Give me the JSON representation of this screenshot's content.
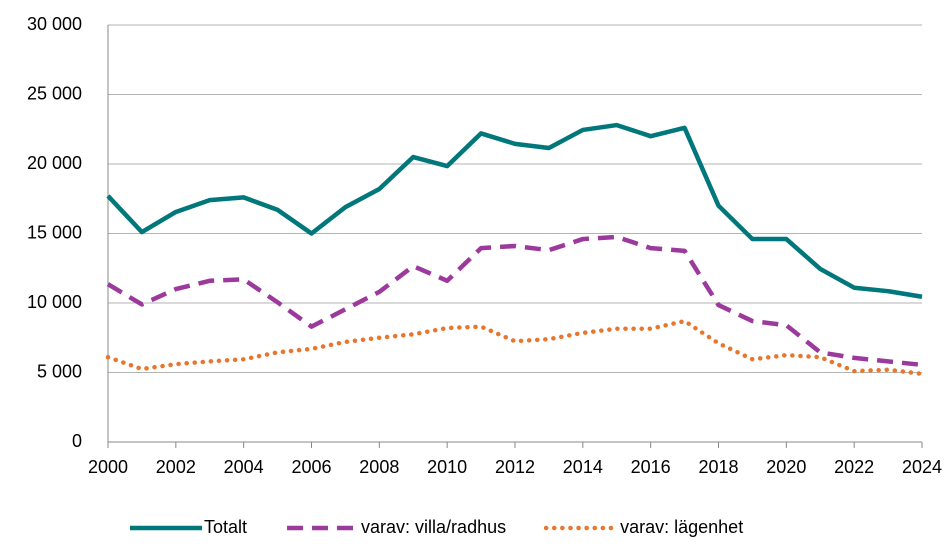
{
  "chart_data": {
    "type": "line",
    "x": [
      2000,
      2001,
      2002,
      2003,
      2004,
      2005,
      2006,
      2007,
      2008,
      2009,
      2010,
      2011,
      2012,
      2013,
      2014,
      2015,
      2016,
      2017,
      2018,
      2019,
      2020,
      2021,
      2022,
      2023,
      2024
    ],
    "xlim": [
      2000,
      2024
    ],
    "xticks": [
      2000,
      2002,
      2004,
      2006,
      2008,
      2010,
      2012,
      2014,
      2016,
      2018,
      2020,
      2022,
      2024
    ],
    "ylim": [
      0,
      30000
    ],
    "yticks": [
      0,
      {
        "value": 5000,
        "label": "5 000"
      },
      {
        "value": 10000,
        "label": "10 000"
      },
      {
        "value": 15000,
        "label": "15 000"
      },
      {
        "value": 20000,
        "label": "20 000"
      },
      {
        "value": 25000,
        "label": "25 000"
      },
      {
        "value": 30000,
        "label": "30 000"
      }
    ],
    "grid": true,
    "legend": "bottom",
    "series": [
      {
        "name": "Totalt",
        "color": "#00777a",
        "dash": "solid",
        "values": [
          17700,
          15100,
          16550,
          17400,
          17600,
          16700,
          15000,
          16900,
          18200,
          20500,
          19850,
          22200,
          21450,
          21150,
          22450,
          22800,
          22000,
          22600,
          17000,
          14600,
          14600,
          12450,
          11100,
          10850,
          10450
        ]
      },
      {
        "name": "varav: villa/radhus",
        "color": "#9b3a9c",
        "dash": "dashed",
        "values": [
          11350,
          9900,
          11000,
          11600,
          11700,
          10050,
          8300,
          9550,
          10800,
          12650,
          11600,
          13950,
          14100,
          13800,
          14600,
          14750,
          13950,
          13750,
          9850,
          8700,
          8400,
          6450,
          6050,
          5800,
          5550
        ]
      },
      {
        "name": "varav: lägenhet",
        "color": "#e8762d",
        "dash": "dotted",
        "values": [
          6100,
          5250,
          5600,
          5800,
          5950,
          6450,
          6700,
          7200,
          7500,
          7750,
          8200,
          8300,
          7250,
          7400,
          7850,
          8150,
          8150,
          8700,
          7100,
          5950,
          6250,
          6100,
          5100,
          5200,
          4900
        ]
      }
    ]
  }
}
